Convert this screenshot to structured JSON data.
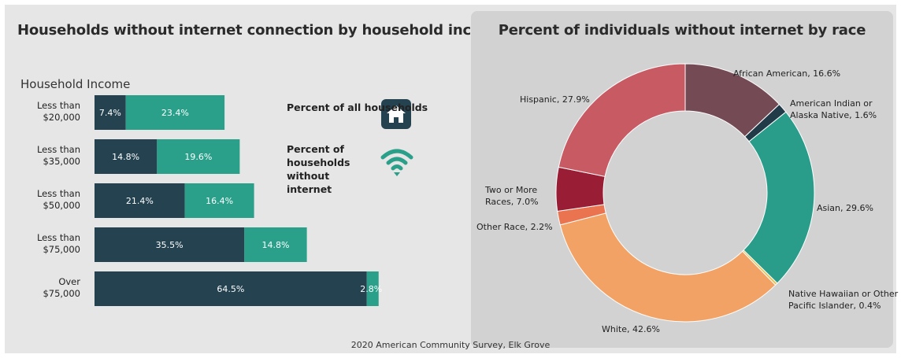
{
  "left_title": "Households without internet connection by household income",
  "right_title": "Percent of individuals without internet by race",
  "income_axis_label": "Household Income",
  "legend": {
    "all_households": "Percent of all households",
    "without_internet": "Percent of households without internet",
    "all_households_icon": "house-icon",
    "without_internet_icon": "wifi-icon"
  },
  "source": "2020 American Community Survey, Elk Grove",
  "colors": {
    "all_households": "#24424f",
    "without_internet": "#2aa08a"
  },
  "chart_data": [
    {
      "type": "bar",
      "orientation": "horizontal",
      "stacked": true,
      "title": "Households without internet connection by household income",
      "ylabel": "Household Income",
      "categories": [
        "Less than $20,000",
        "Less than $35,000",
        "Less than $50,000",
        "Less than $75,000",
        "Over $75,000"
      ],
      "category_lines": [
        [
          "Less than",
          "$20,000"
        ],
        [
          "Less than",
          "$35,000"
        ],
        [
          "Less than",
          "$50,000"
        ],
        [
          "Less than",
          "$75,000"
        ],
        [
          "Over",
          "$75,000"
        ]
      ],
      "series": [
        {
          "name": "Percent of all households",
          "values": [
            7.4,
            14.8,
            21.4,
            35.5,
            64.5
          ],
          "labels": [
            "7.4%",
            "14.8%",
            "21.4%",
            "35.5%",
            "64.5%"
          ]
        },
        {
          "name": "Percent of households without internet",
          "values": [
            23.4,
            19.6,
            16.4,
            14.8,
            2.8
          ],
          "labels": [
            "23.4%",
            "19.6%",
            "16.4%",
            "14.8%",
            "2.8%"
          ]
        }
      ]
    },
    {
      "type": "pie",
      "donut": true,
      "title": "Percent of individuals without internet by race",
      "slices": [
        {
          "label": "African American, 16.6%",
          "value": 16.6,
          "color": "#744a55"
        },
        {
          "label": "American Indian or Alaska Native, 1.6%",
          "value": 1.6,
          "color": "#223b48"
        },
        {
          "label": "Asian, 29.6%",
          "value": 29.6,
          "color": "#2a9d8a"
        },
        {
          "label": "Native Hawaiian or Other Pacific Islander, 0.4%",
          "value": 0.4,
          "color": "#e8c45a"
        },
        {
          "label": "White, 42.6%",
          "value": 42.6,
          "color": "#f3a265"
        },
        {
          "label": "Other Race, 2.2%",
          "value": 2.2,
          "color": "#ea7450"
        },
        {
          "label": "Two or More Races, 7.0%",
          "value": 7.0,
          "color": "#981d35"
        },
        {
          "label": "Hispanic, 27.9%",
          "value": 27.9,
          "color": "#c85a64"
        }
      ]
    }
  ]
}
